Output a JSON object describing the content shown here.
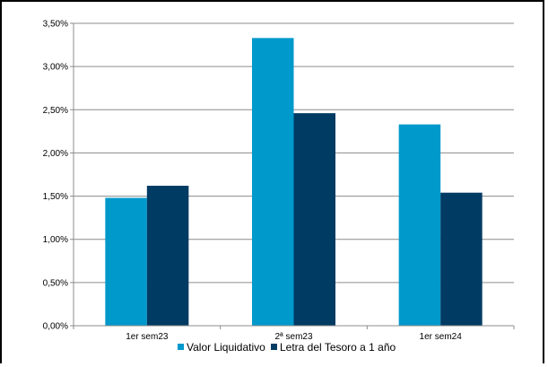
{
  "chart_data": {
    "type": "bar",
    "categories": [
      "1er sem23",
      "2ª sem23",
      "1er sem24"
    ],
    "series": [
      {
        "name": "Valor Liquidativo",
        "color": "#0099cc",
        "values": [
          1.48,
          3.33,
          2.33
        ]
      },
      {
        "name": "Letra del Tesoro a 1 año",
        "color": "#003b63",
        "values": [
          1.62,
          2.46,
          1.54
        ]
      }
    ],
    "ylim": [
      0,
      3.5
    ],
    "yticks": [
      "0,00%",
      "0,50%",
      "1,00%",
      "1,50%",
      "2,00%",
      "2,50%",
      "3,00%",
      "3,50%"
    ],
    "grid": true,
    "legend": "bottom",
    "title": "",
    "xlabel": "",
    "ylabel": ""
  }
}
